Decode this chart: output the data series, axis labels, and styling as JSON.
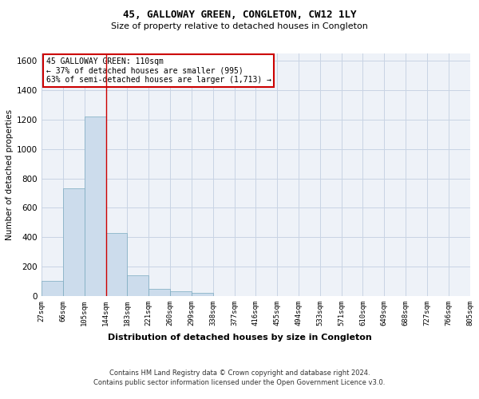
{
  "title": "45, GALLOWAY GREEN, CONGLETON, CW12 1LY",
  "subtitle": "Size of property relative to detached houses in Congleton",
  "xlabel": "Distribution of detached houses by size in Congleton",
  "ylabel": "Number of detached properties",
  "footer_line1": "Contains HM Land Registry data © Crown copyright and database right 2024.",
  "footer_line2": "Contains public sector information licensed under the Open Government Licence v3.0.",
  "annotation_line1": "45 GALLOWAY GREEN: 110sqm",
  "annotation_line2": "← 37% of detached houses are smaller (995)",
  "annotation_line3": "63% of semi-detached houses are larger (1,713) →",
  "bin_labels": [
    "27sqm",
    "66sqm",
    "105sqm",
    "144sqm",
    "183sqm",
    "221sqm",
    "260sqm",
    "299sqm",
    "338sqm",
    "377sqm",
    "416sqm",
    "455sqm",
    "494sqm",
    "533sqm",
    "571sqm",
    "610sqm",
    "649sqm",
    "688sqm",
    "727sqm",
    "766sqm",
    "805sqm"
  ],
  "bar_values": [
    105,
    730,
    1220,
    430,
    140,
    50,
    30,
    20,
    0,
    0,
    0,
    0,
    0,
    0,
    0,
    0,
    0,
    0,
    0,
    0
  ],
  "bar_color": "#ccdcec",
  "bar_edge_color": "#7aaabf",
  "red_line_bin_idx": 2,
  "ylim": [
    0,
    1650
  ],
  "yticks": [
    0,
    200,
    400,
    600,
    800,
    1000,
    1200,
    1400,
    1600
  ],
  "grid_color": "#c8d4e4",
  "bg_color": "#eef2f8",
  "annotation_box_color": "#ffffff",
  "annotation_box_edge": "#cc0000",
  "red_line_color": "#cc0000"
}
